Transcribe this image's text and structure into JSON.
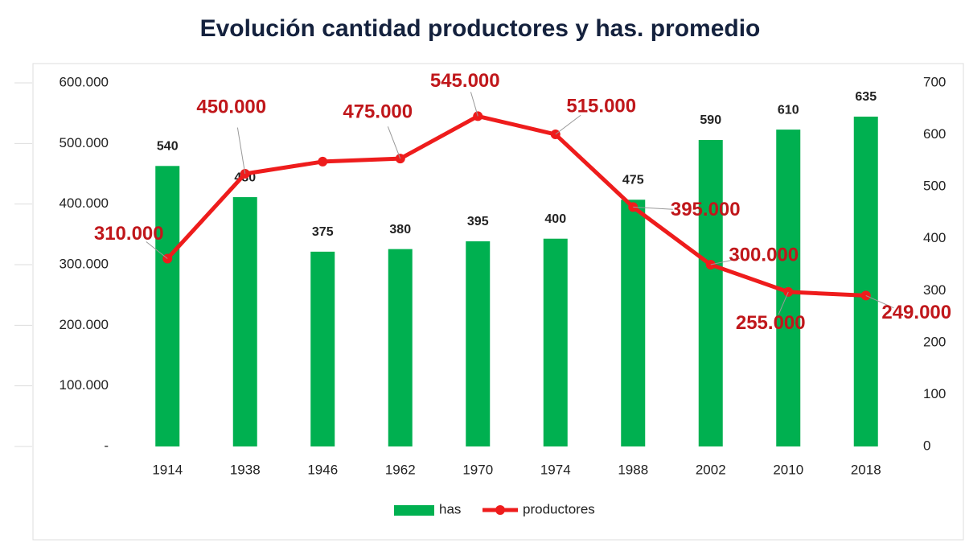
{
  "chart_data": {
    "type": "bar-line",
    "title": "Evolución cantidad productores y has. promedio",
    "categories": [
      "1914",
      "1938",
      "1946",
      "1962",
      "1970",
      "1974",
      "1988",
      "2002",
      "2010",
      "2018"
    ],
    "series": [
      {
        "name": "has",
        "type": "bar",
        "axis": "y2",
        "color": "#00b050",
        "values": [
          540,
          480,
          375,
          380,
          395,
          400,
          475,
          590,
          610,
          635
        ]
      },
      {
        "name": "productores",
        "type": "line",
        "axis": "y",
        "color": "#ee1c1c",
        "values": [
          310000,
          450000,
          470000,
          475000,
          545000,
          515000,
          395000,
          300000,
          255000,
          249000
        ],
        "value_labels": [
          "310.000",
          "450.000",
          null,
          "475.000",
          "545.000",
          "515.000",
          "395.000",
          "300.000",
          "255.000",
          "249.000"
        ]
      }
    ],
    "ylim": [
      0,
      600000
    ],
    "yticks": [
      {
        "value": 0,
        "label": "-"
      },
      {
        "value": 100000,
        "label": "100.000"
      },
      {
        "value": 200000,
        "label": "200.000"
      },
      {
        "value": 300000,
        "label": "300.000"
      },
      {
        "value": 400000,
        "label": "400.000"
      },
      {
        "value": 500000,
        "label": "500.000"
      },
      {
        "value": 600000,
        "label": "600.000"
      }
    ],
    "y2lim": [
      0,
      700
    ],
    "y2ticks": [
      0,
      100,
      200,
      300,
      400,
      500,
      600,
      700
    ],
    "grid": false,
    "legend": "bottom"
  }
}
